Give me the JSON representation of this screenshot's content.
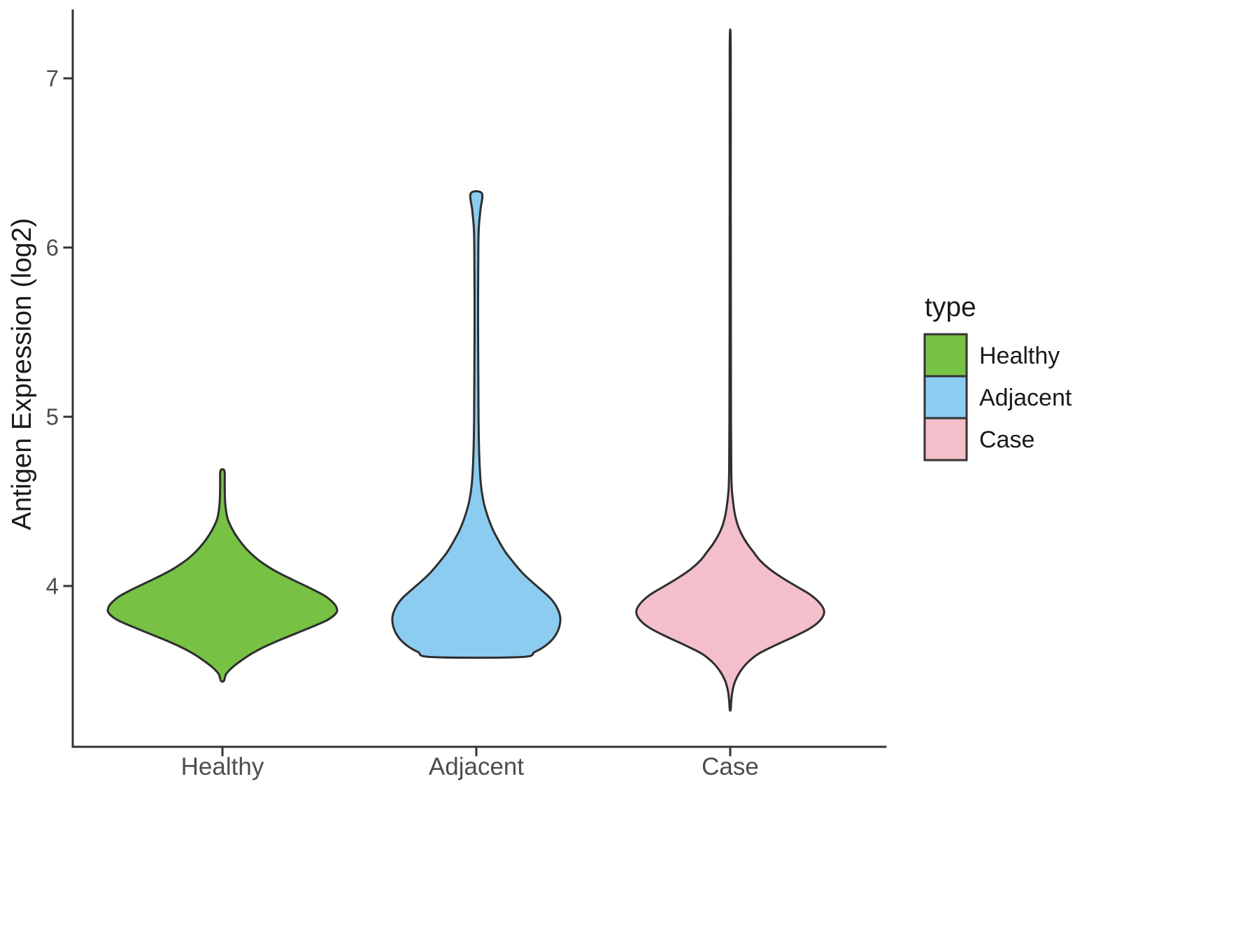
{
  "chart_data": {
    "type": "violin",
    "title": "",
    "xlabel": "",
    "ylabel": "Antigen Expression (log2)",
    "categories": [
      "Healthy",
      "Adjacent",
      "Case"
    ],
    "yticks": [
      "7",
      "6",
      "5",
      "4"
    ],
    "ytick_values": [
      7,
      6,
      5,
      4
    ],
    "ylim": [
      3.05,
      7.35
    ],
    "grid": false,
    "legend": {
      "title": "type",
      "position": "right",
      "entries": [
        {
          "label": "Healthy",
          "color": "#77C144"
        },
        {
          "label": "Adjacent",
          "color": "#8CCCF1"
        },
        {
          "label": "Case",
          "color": "#F4BFCA"
        }
      ]
    },
    "style": {
      "outline_color": "#2E2E2E",
      "axis_color": "#333333",
      "tick_label_color": "#4D4D4D",
      "text_color": "#1A1A1A",
      "background": "#FFFFFF"
    },
    "series": [
      {
        "name": "Healthy",
        "color": "#77C144",
        "min": 3.44,
        "max": 4.68,
        "peak_value": 3.86,
        "profile": [
          [
            3.44,
            0.006
          ],
          [
            3.48,
            0.015
          ],
          [
            3.52,
            0.04
          ],
          [
            3.56,
            0.075
          ],
          [
            3.6,
            0.115
          ],
          [
            3.64,
            0.165
          ],
          [
            3.68,
            0.225
          ],
          [
            3.72,
            0.29
          ],
          [
            3.76,
            0.355
          ],
          [
            3.8,
            0.415
          ],
          [
            3.84,
            0.448
          ],
          [
            3.87,
            0.45
          ],
          [
            3.9,
            0.437
          ],
          [
            3.94,
            0.405
          ],
          [
            3.98,
            0.355
          ],
          [
            4.02,
            0.3
          ],
          [
            4.06,
            0.245
          ],
          [
            4.1,
            0.195
          ],
          [
            4.15,
            0.145
          ],
          [
            4.2,
            0.107
          ],
          [
            4.25,
            0.077
          ],
          [
            4.3,
            0.053
          ],
          [
            4.35,
            0.034
          ],
          [
            4.4,
            0.02
          ],
          [
            4.46,
            0.013
          ],
          [
            4.52,
            0.01
          ],
          [
            4.6,
            0.009
          ],
          [
            4.68,
            0.008
          ]
        ]
      },
      {
        "name": "Adjacent",
        "color": "#8CCCF1",
        "min": 3.58,
        "max": 6.32,
        "peak_value": 3.82,
        "profile": [
          [
            3.58,
            0.174
          ],
          [
            3.61,
            0.23
          ],
          [
            3.65,
            0.275
          ],
          [
            3.7,
            0.308
          ],
          [
            3.76,
            0.327
          ],
          [
            3.82,
            0.33
          ],
          [
            3.88,
            0.315
          ],
          [
            3.93,
            0.29
          ],
          [
            3.98,
            0.253
          ],
          [
            4.03,
            0.215
          ],
          [
            4.08,
            0.18
          ],
          [
            4.14,
            0.146
          ],
          [
            4.2,
            0.115
          ],
          [
            4.27,
            0.087
          ],
          [
            4.34,
            0.063
          ],
          [
            4.42,
            0.043
          ],
          [
            4.5,
            0.028
          ],
          [
            4.6,
            0.018
          ],
          [
            4.75,
            0.012
          ],
          [
            4.95,
            0.009
          ],
          [
            5.2,
            0.008
          ],
          [
            5.6,
            0.007
          ],
          [
            6.0,
            0.008
          ],
          [
            6.12,
            0.01
          ],
          [
            6.22,
            0.016
          ],
          [
            6.32,
            0.022
          ]
        ]
      },
      {
        "name": "Case",
        "color": "#F4BFCA",
        "min": 3.27,
        "max": 7.19,
        "peak_value": 3.85,
        "profile": [
          [
            3.27,
            0.002
          ],
          [
            3.32,
            0.004
          ],
          [
            3.38,
            0.009
          ],
          [
            3.44,
            0.02
          ],
          [
            3.5,
            0.042
          ],
          [
            3.55,
            0.07
          ],
          [
            3.6,
            0.112
          ],
          [
            3.65,
            0.178
          ],
          [
            3.7,
            0.25
          ],
          [
            3.75,
            0.315
          ],
          [
            3.8,
            0.356
          ],
          [
            3.85,
            0.37
          ],
          [
            3.9,
            0.352
          ],
          [
            3.95,
            0.314
          ],
          [
            4.0,
            0.258
          ],
          [
            4.05,
            0.203
          ],
          [
            4.1,
            0.155
          ],
          [
            4.15,
            0.118
          ],
          [
            4.2,
            0.092
          ],
          [
            4.25,
            0.067
          ],
          [
            4.3,
            0.047
          ],
          [
            4.35,
            0.032
          ],
          [
            4.42,
            0.019
          ],
          [
            4.5,
            0.011
          ],
          [
            4.58,
            0.006
          ],
          [
            4.7,
            0.004
          ],
          [
            5.0,
            0.003
          ],
          [
            5.6,
            0.0025
          ],
          [
            6.4,
            0.002
          ],
          [
            7.19,
            0.002
          ]
        ]
      }
    ]
  }
}
